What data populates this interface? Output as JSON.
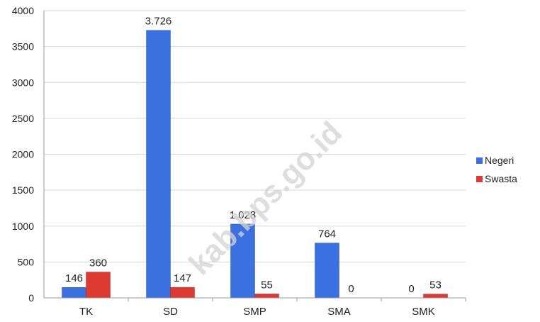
{
  "chart_data": {
    "type": "bar",
    "categories": [
      "TK",
      "SD",
      "SMP",
      "SMA",
      "SMK"
    ],
    "series": [
      {
        "name": "Negeri",
        "color": "#3a70e0",
        "values": [
          146,
          3726,
          1028,
          764,
          0
        ],
        "labels": [
          "146",
          "3.726",
          "1.028",
          "764",
          "0"
        ]
      },
      {
        "name": "Swasta",
        "color": "#dd3a32",
        "values": [
          360,
          147,
          55,
          0,
          53
        ],
        "labels": [
          "360",
          "147",
          "55",
          "0",
          "53"
        ]
      }
    ],
    "yticks": [
      "0",
      "500",
      "1000",
      "1500",
      "2000",
      "2500",
      "3000",
      "3500",
      "4000"
    ],
    "ylim": [
      0,
      4000
    ],
    "grid": true,
    "legend_position": "right",
    "watermark": "kab.bps.go.id"
  }
}
